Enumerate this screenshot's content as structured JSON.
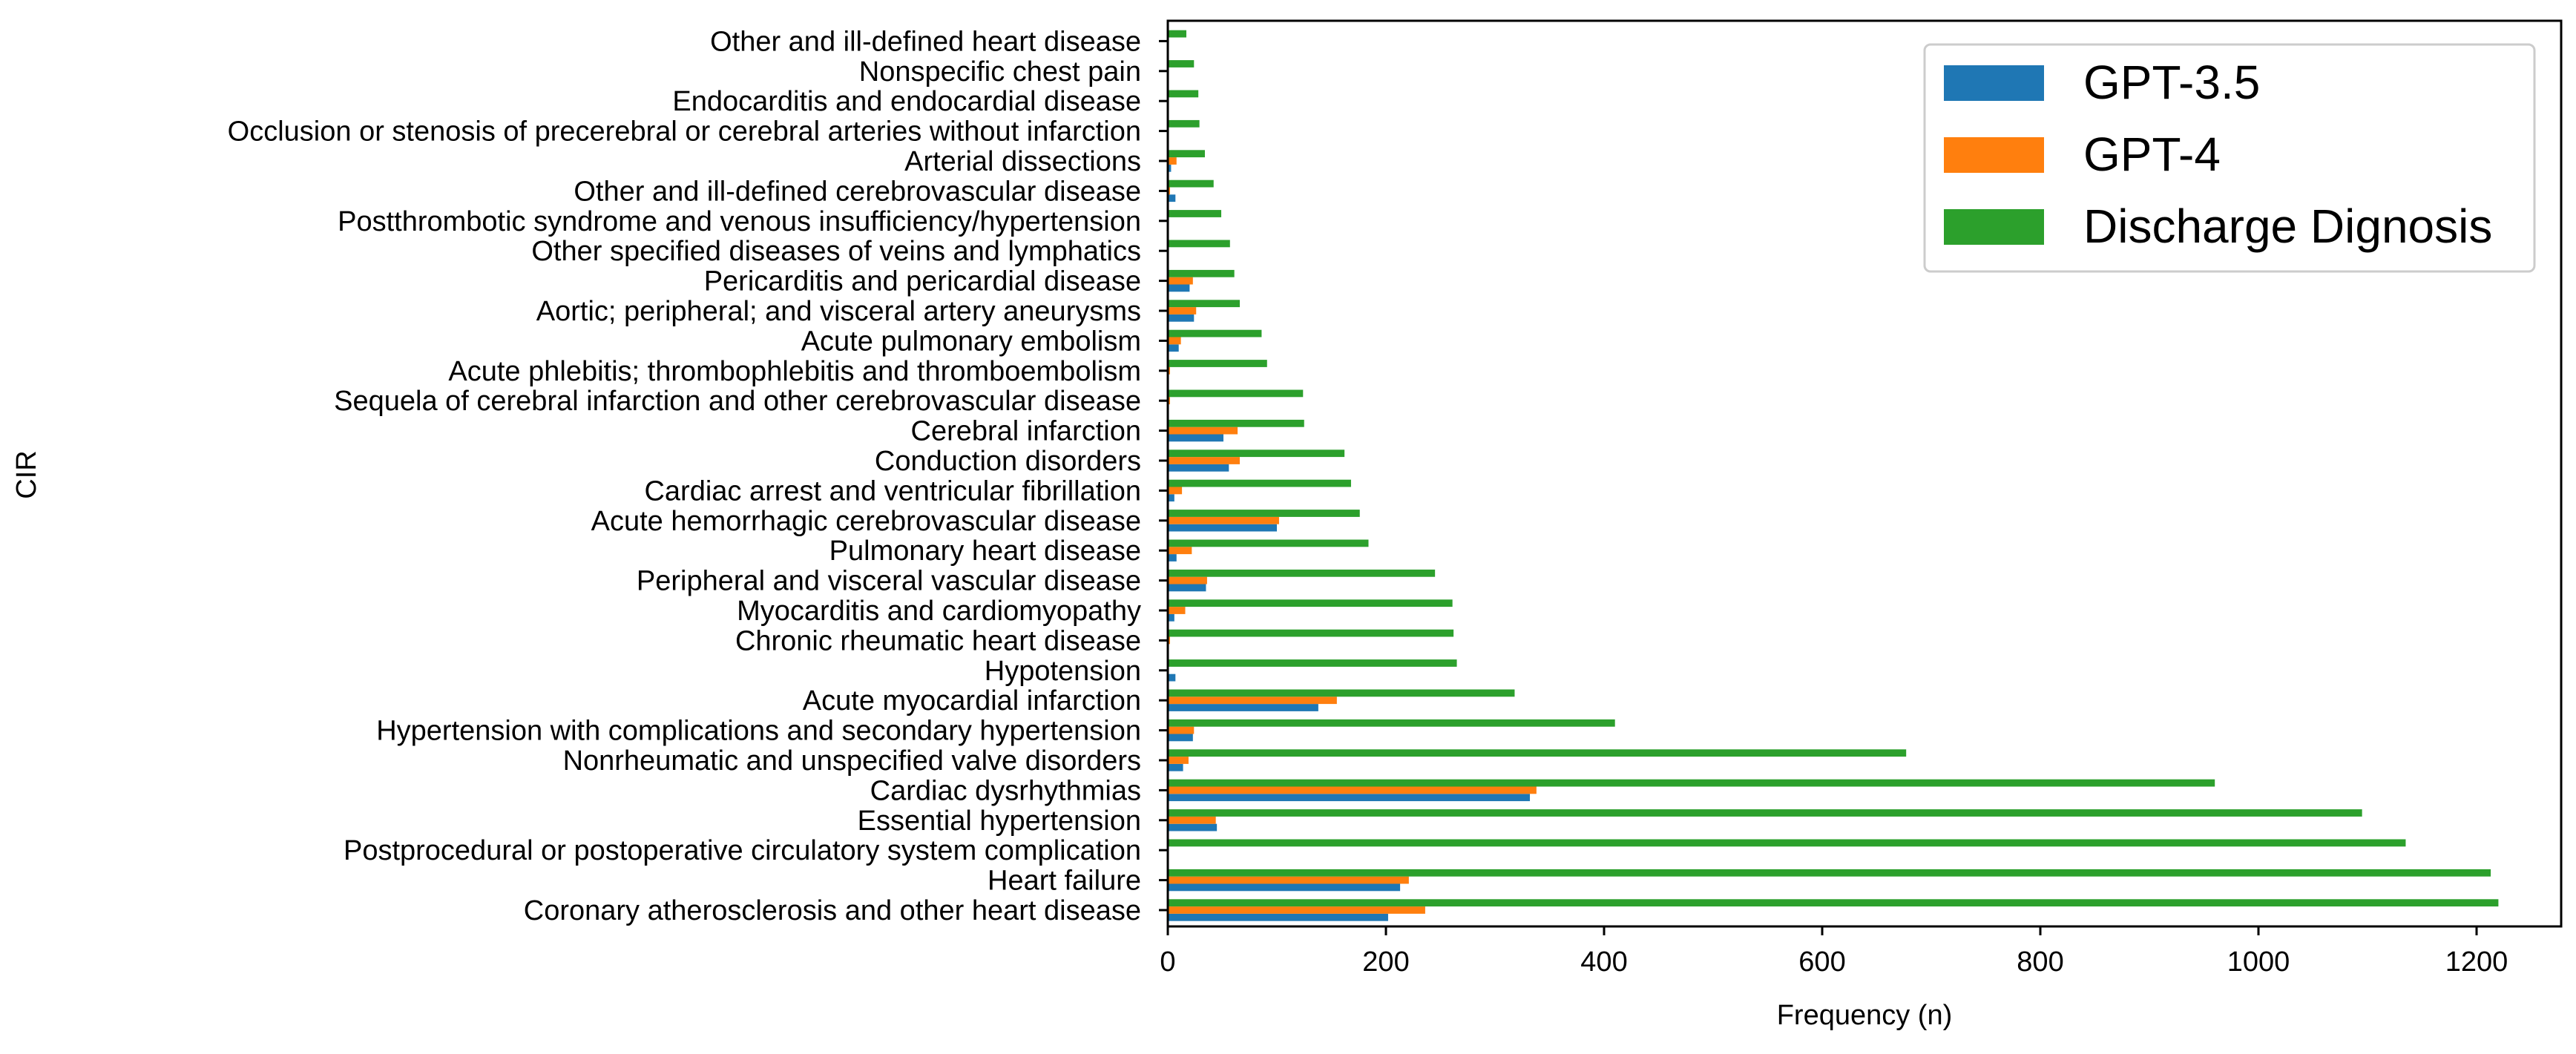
{
  "chart_data": {
    "type": "bar",
    "orientation": "horizontal",
    "xlabel": "Frequency (n)",
    "ylabel": "CIR",
    "xlim": [
      0,
      1280
    ],
    "xticks": [
      0,
      200,
      400,
      600,
      800,
      1000,
      1200
    ],
    "legend_position": "top-right",
    "categories": [
      "Coronary atherosclerosis and other heart disease",
      "Heart failure",
      "Postprocedural or postoperative circulatory system complication",
      "Essential hypertension",
      "Cardiac dysrhythmias",
      "Nonrheumatic and unspecified valve disorders",
      "Hypertension with complications and secondary hypertension",
      "Acute myocardial infarction",
      "Hypotension",
      "Chronic rheumatic heart disease",
      "Myocarditis and cardiomyopathy",
      "Peripheral and visceral vascular disease",
      "Pulmonary heart disease",
      "Acute hemorrhagic cerebrovascular disease",
      "Cardiac arrest and ventricular fibrillation",
      "Conduction disorders",
      "Cerebral infarction",
      "Sequela of cerebral infarction and other cerebrovascular disease",
      "Acute phlebitis; thrombophlebitis and thromboembolism",
      "Acute pulmonary embolism",
      "Aortic; peripheral; and visceral artery aneurysms",
      "Pericarditis and pericardial disease",
      "Other specified diseases of veins and lymphatics",
      "Postthrombotic syndrome and venous insufficiency/hypertension",
      "Other and ill-defined cerebrovascular disease",
      "Arterial dissections",
      "Occlusion or stenosis of precerebral or cerebral arteries without infarction",
      "Endocarditis and endocardial disease",
      "Nonspecific chest pain",
      "Other and ill-defined heart disease"
    ],
    "series": [
      {
        "name": "GPT-3.5",
        "color": "#1f77b4",
        "values": [
          202,
          213,
          0,
          45,
          332,
          14,
          23,
          138,
          7,
          0,
          6,
          35,
          8,
          100,
          6,
          56,
          51,
          0,
          0,
          10,
          24,
          20,
          0,
          0,
          7,
          3,
          0,
          0,
          0,
          0
        ]
      },
      {
        "name": "GPT-4",
        "color": "#ff7f0e",
        "values": [
          236,
          221,
          0,
          44,
          338,
          19,
          24,
          155,
          0,
          2,
          16,
          36,
          22,
          102,
          13,
          66,
          64,
          2,
          2,
          12,
          26,
          23,
          0,
          0,
          2,
          8,
          0,
          0,
          0,
          0
        ]
      },
      {
        "name": "Discharge Dignosis",
        "color": "#2ca02c",
        "values": [
          1220,
          1213,
          1135,
          1095,
          960,
          677,
          410,
          318,
          265,
          262,
          261,
          245,
          184,
          176,
          168,
          162,
          125,
          124,
          91,
          86,
          66,
          61,
          57,
          49,
          42,
          34,
          29,
          28,
          24,
          17
        ]
      }
    ]
  }
}
